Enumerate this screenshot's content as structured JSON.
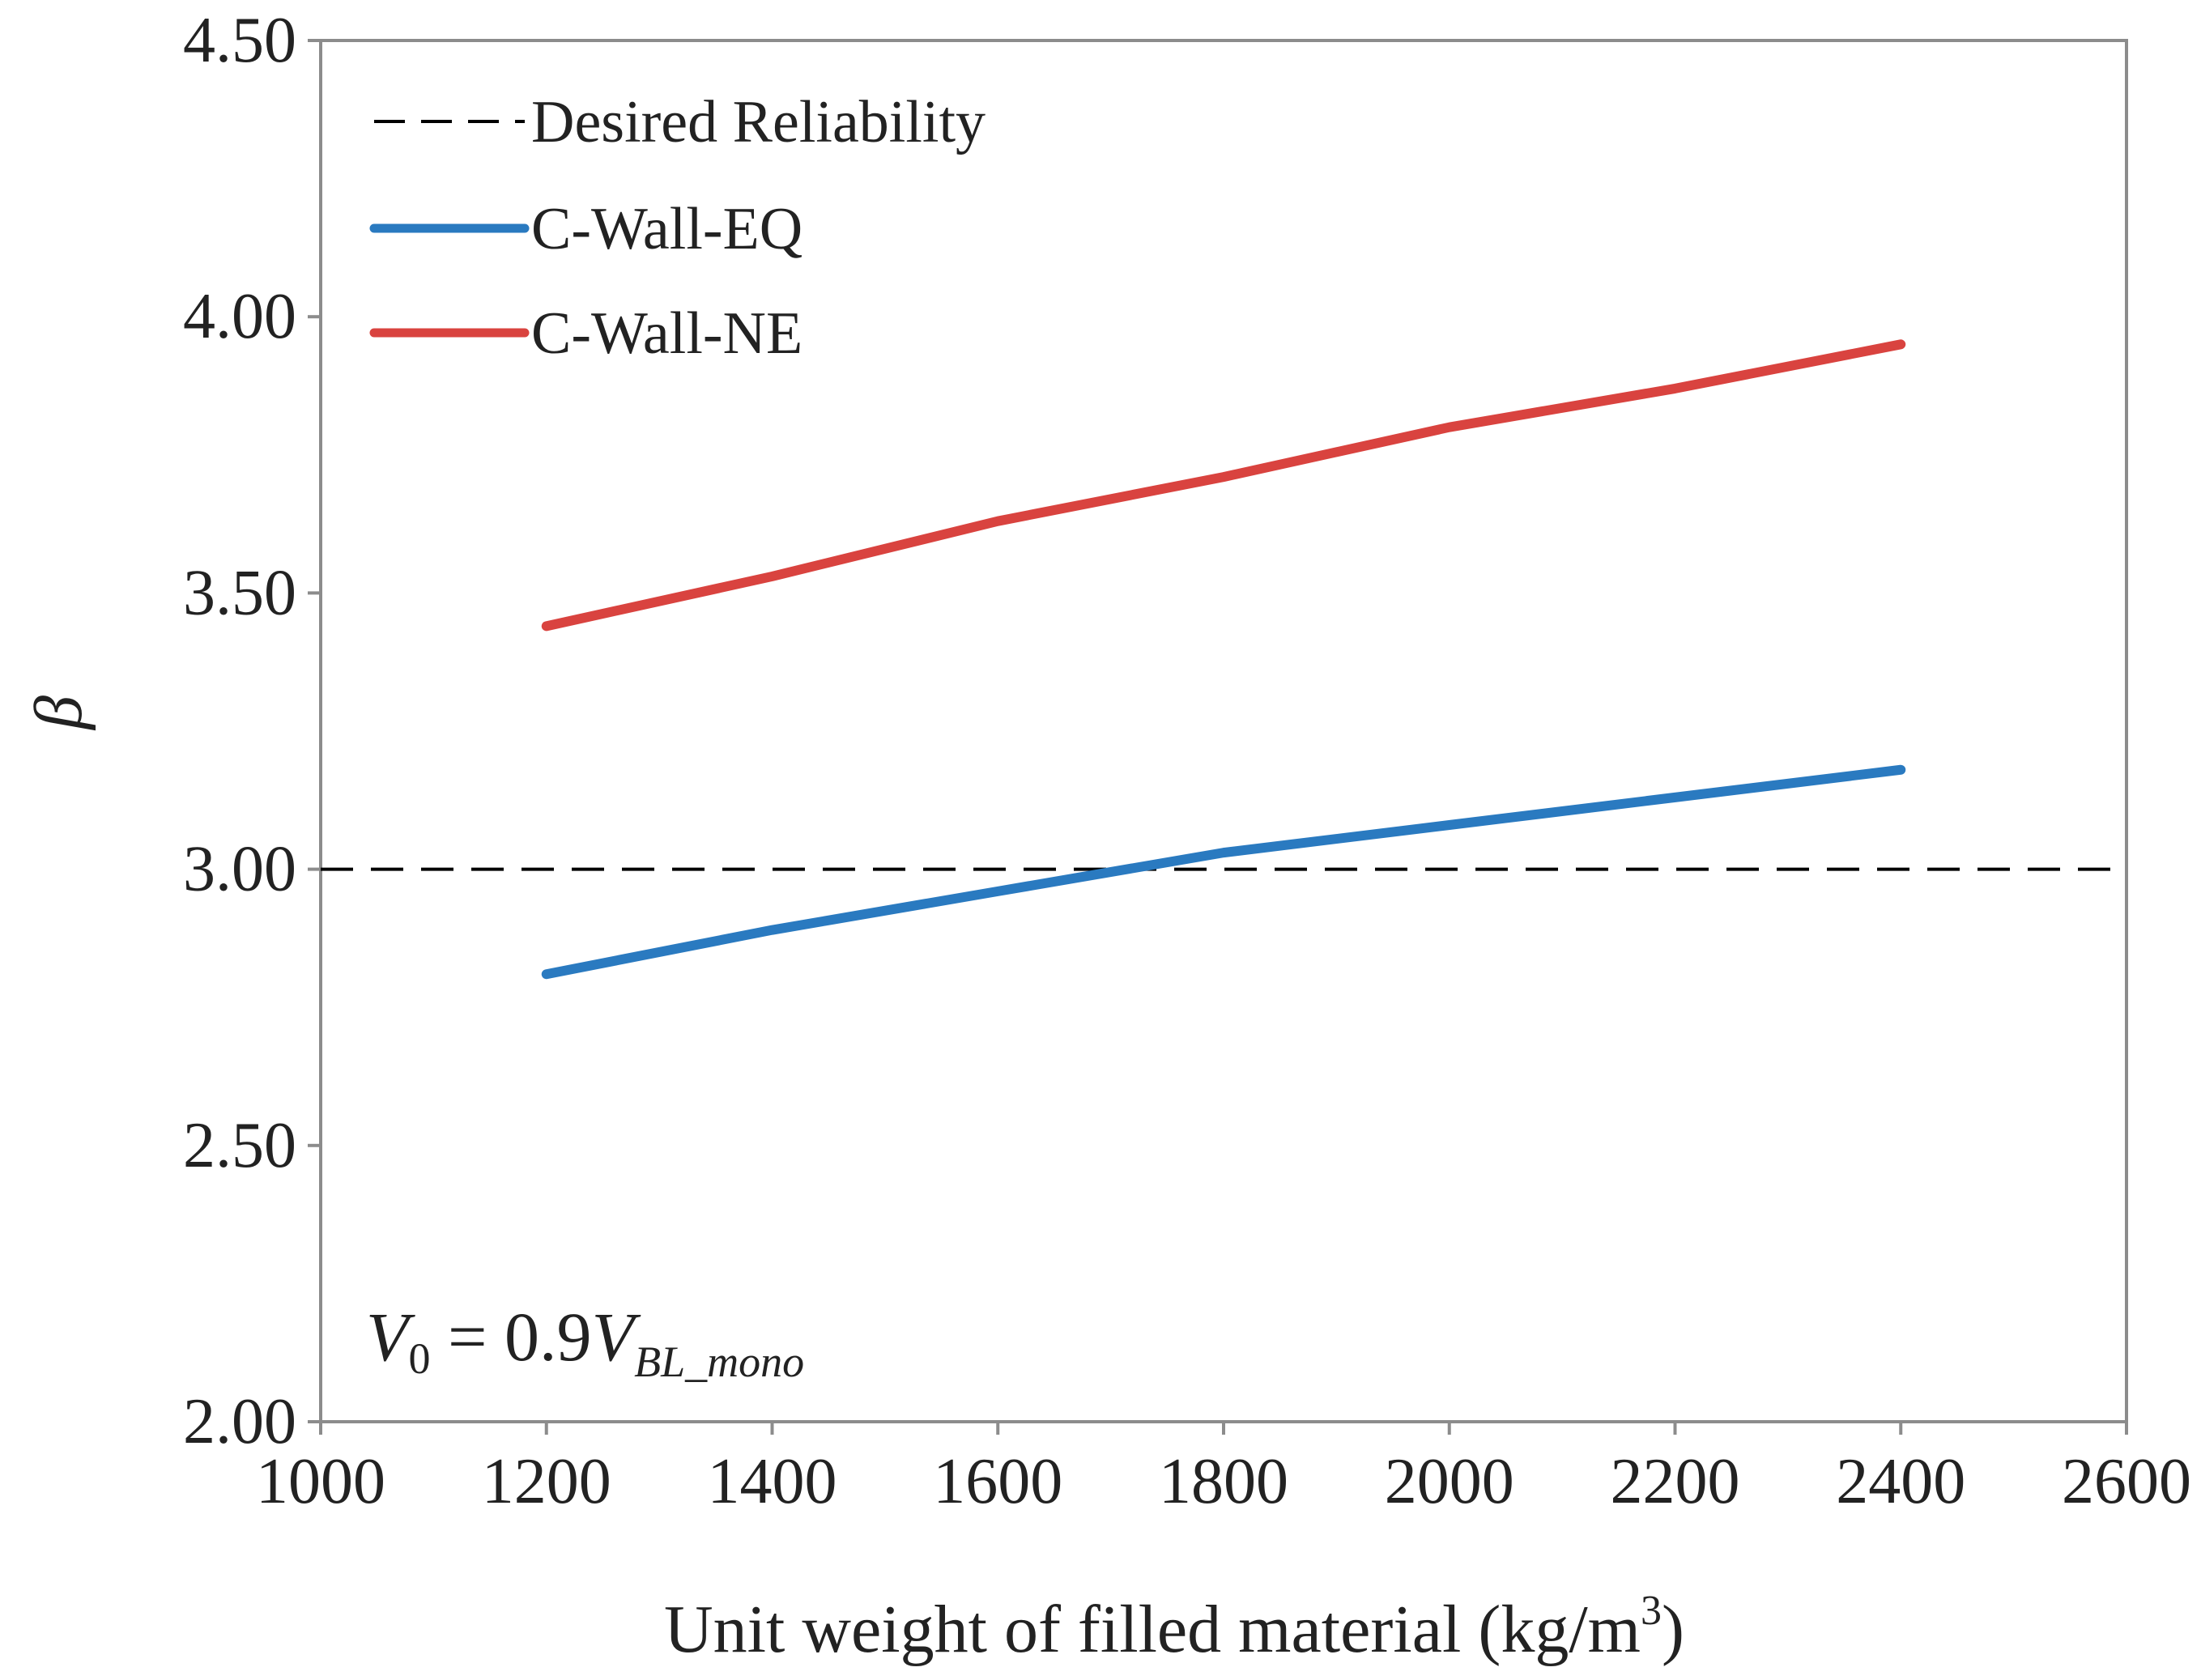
{
  "chart_data": {
    "type": "line",
    "title": "",
    "xlabel": "Unit weight of filled material (kg/m",
    "xlabel_superscript": "3",
    "xlabel_suffix": ")",
    "ylabel": "β",
    "xlim": [
      1000,
      2600
    ],
    "ylim": [
      2.0,
      4.5
    ],
    "x_ticks": [
      1000,
      1200,
      1400,
      1600,
      1800,
      2000,
      2200,
      2400,
      2600
    ],
    "x_tick_labels": [
      "1000",
      "1200",
      "1400",
      "1600",
      "1800",
      "2000",
      "2200",
      "2400",
      "2600"
    ],
    "y_ticks": [
      2.0,
      2.5,
      3.0,
      3.5,
      4.0,
      4.5
    ],
    "y_tick_labels": [
      "2.00",
      "2.50",
      "3.00",
      "3.50",
      "4.00",
      "4.50"
    ],
    "grid": false,
    "legend_position": "top-left",
    "reference_line": {
      "name": "Desired Reliability",
      "y": 3.0,
      "color": "#000000",
      "style": "dashed"
    },
    "series": [
      {
        "name": "C-Wall-EQ",
        "color": "#2a7ac0",
        "x": [
          1200,
          1400,
          1600,
          1800,
          2000,
          2200,
          2400
        ],
        "values": [
          2.81,
          2.89,
          2.96,
          3.03,
          3.08,
          3.13,
          3.18
        ]
      },
      {
        "name": "C-Wall-NE",
        "color": "#d9433f",
        "x": [
          1200,
          1400,
          1600,
          1800,
          2000,
          2200,
          2400
        ],
        "values": [
          3.44,
          3.53,
          3.63,
          3.71,
          3.8,
          3.87,
          3.95
        ]
      }
    ],
    "annotation": {
      "V": "V",
      "sub0": "0",
      "equals": " = 0.9",
      "V2": "V",
      "sub_bl": "BL_mono"
    }
  }
}
